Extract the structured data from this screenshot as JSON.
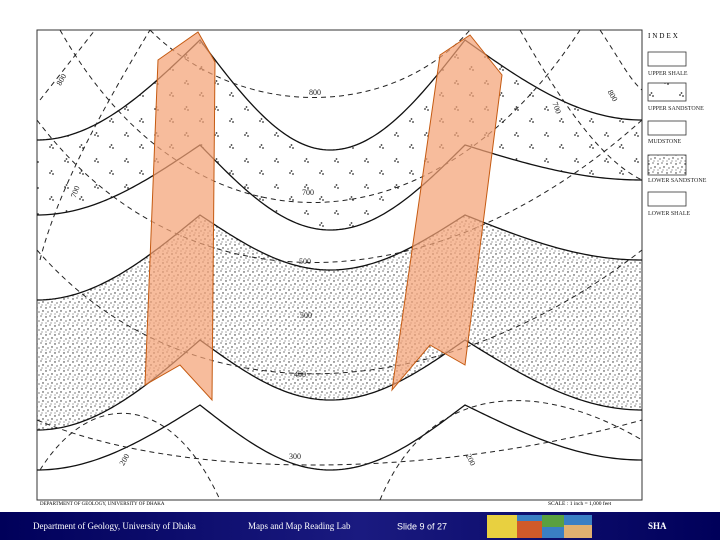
{
  "legend": {
    "title": "INDEX",
    "items": [
      "UPPER SHALE",
      "UPPER SANDSTONE",
      "MUDSTONE",
      "LOWER SANDSTONE",
      "LOWER SHALE"
    ]
  },
  "map": {
    "contour_labels": [
      "800",
      "800",
      "700",
      "800",
      "700",
      "700",
      "500",
      "500",
      "400",
      "200",
      "300",
      "200"
    ],
    "credit": "DEPARTMENT OF GEOLOGY, UNIVERSITY OF DHAKA",
    "scale": "SCALE : 1 inch = 1,000 feet"
  },
  "footer": {
    "department": "Department of Geology, University of Dhaka",
    "course": "Maps and Map Reading Lab",
    "slide": "Slide 9 of 27",
    "author": "SHA"
  }
}
